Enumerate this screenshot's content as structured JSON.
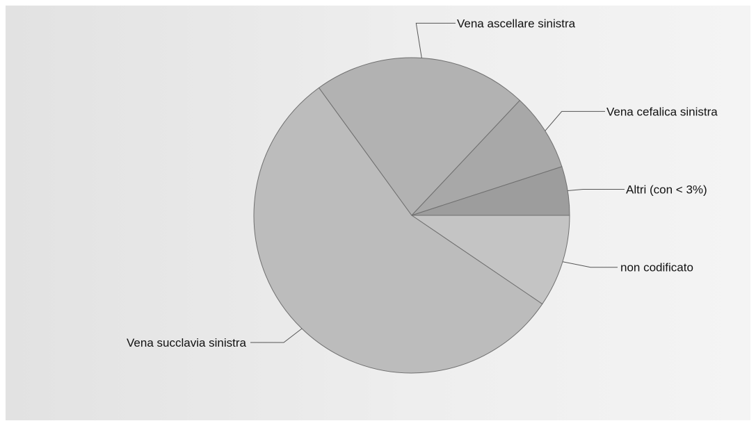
{
  "chart_data": {
    "type": "pie",
    "title": "",
    "start_angle_deg": 0,
    "direction": "clockwise",
    "slices": [
      {
        "label": "non codificato",
        "value": 9.5,
        "color": "#c4c4c4"
      },
      {
        "label": "Vena succlavia sinistra",
        "value": 55.5,
        "color": "#bcbcbc"
      },
      {
        "label": "Vena ascellare sinistra",
        "value": 22.0,
        "color": "#b2b2b2"
      },
      {
        "label": "Vena cefalica sinistra",
        "value": 8.0,
        "color": "#a8a8a8"
      },
      {
        "label": "Altri (con < 3%)",
        "value": 5.0,
        "color": "#9d9d9d"
      }
    ]
  },
  "background": {
    "from": "#e2e2e2",
    "to": "#f4f4f4"
  }
}
